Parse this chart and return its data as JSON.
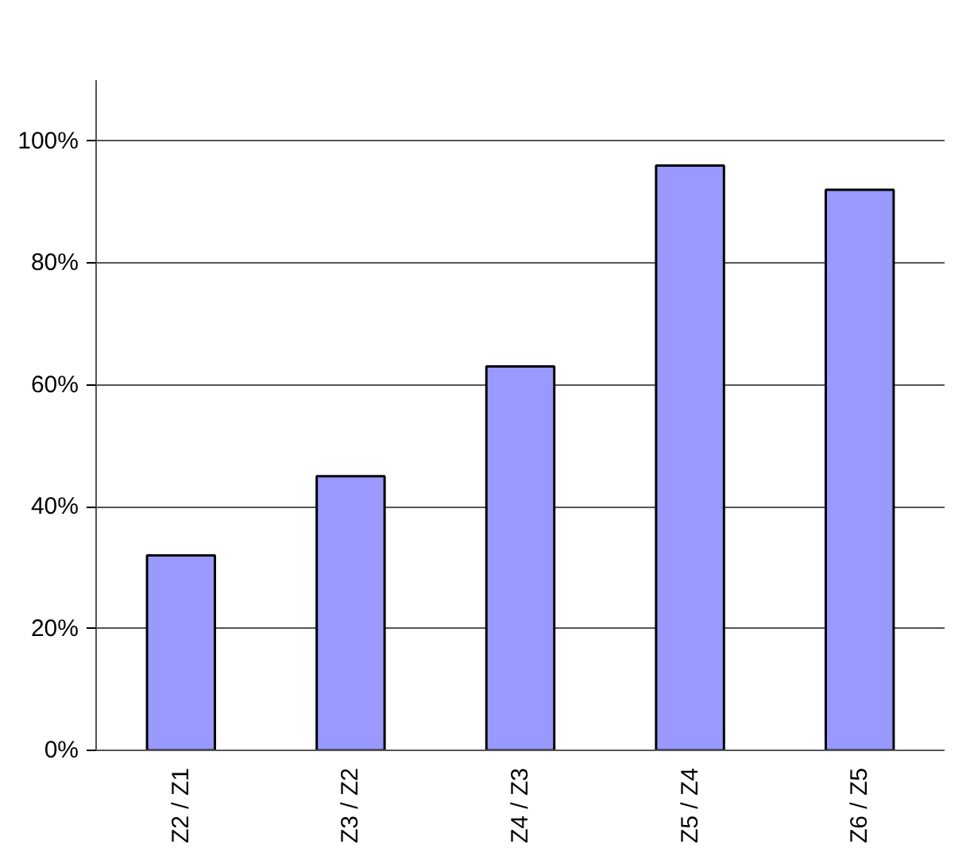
{
  "chart_data": {
    "type": "bar",
    "categories": [
      "Z2 / Z1",
      "Z3 / Z2",
      "Z4 / Z3",
      "Z5 / Z4",
      "Z6 / Z5"
    ],
    "values": [
      32,
      45,
      63,
      96,
      92
    ],
    "color": "#9999ff",
    "ylim": [
      0,
      110
    ],
    "yticks": [
      {
        "value": 0,
        "label": "0%"
      },
      {
        "value": 20,
        "label": "20%"
      },
      {
        "value": 40,
        "label": "40%"
      },
      {
        "value": 60,
        "label": "60%"
      },
      {
        "value": 80,
        "label": "80%"
      },
      {
        "value": 100,
        "label": "100%"
      }
    ],
    "grid": "y"
  }
}
